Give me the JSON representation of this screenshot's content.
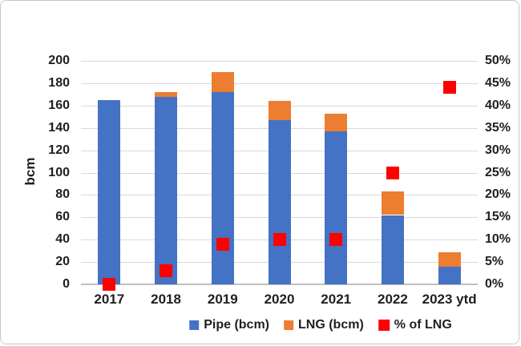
{
  "window": {
    "background": "#ffffff",
    "border_color": "#c6c6c6"
  },
  "chart_data": {
    "type": "bar",
    "subtype": "stacked-bars-with-square-scatter-overlay",
    "title": "",
    "xlabel": "",
    "ylabel": "bcm",
    "categories": [
      "2017",
      "2018",
      "2019",
      "2020",
      "2021",
      "2022",
      "2023 ytd"
    ],
    "series": [
      {
        "name": "Pipe (bcm)",
        "kind": "bar",
        "stack": "volume",
        "color": "#4472C4",
        "axis": "left",
        "values": [
          165,
          168,
          172,
          147,
          137,
          62,
          16
        ]
      },
      {
        "name": "LNG (bcm)",
        "kind": "bar",
        "stack": "volume",
        "color": "#ED7D31",
        "axis": "left",
        "values": [
          0,
          4,
          18,
          17,
          16,
          21,
          13
        ]
      },
      {
        "name": "% of LNG",
        "kind": "scatter",
        "marker": "square",
        "color": "#FF0000",
        "axis": "right",
        "values": [
          0,
          3,
          9,
          10,
          10,
          25,
          44
        ]
      }
    ],
    "left_axis": {
      "min": 0,
      "max": 200,
      "step": 20,
      "tick_labels": [
        "0",
        "20",
        "40",
        "60",
        "80",
        "100",
        "120",
        "140",
        "160",
        "180",
        "200"
      ]
    },
    "right_axis": {
      "min": 0,
      "max": 50,
      "step": 5,
      "tick_labels": [
        "0%",
        "5%",
        "10%",
        "15%",
        "20%",
        "25%",
        "30%",
        "35%",
        "40%",
        "45%",
        "50%"
      ]
    },
    "grid": true,
    "gridline_color": "#d9d9d9",
    "axis_line_color": "#bfbfbf",
    "legend_position": "bottom"
  }
}
